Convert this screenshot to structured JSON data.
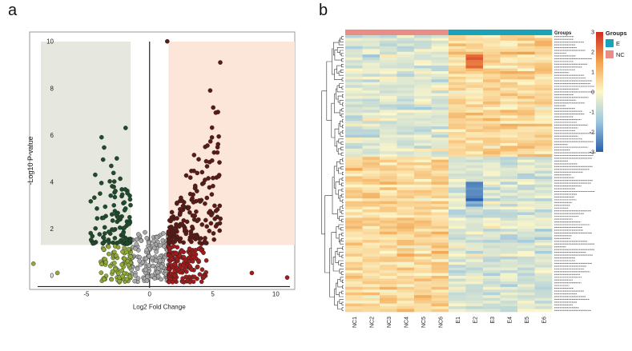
{
  "panel_labels": {
    "a": "a",
    "b": "b"
  },
  "chart_data": [
    {
      "type": "scatter",
      "panel": "a",
      "title": "",
      "xlabel": "Log2 Fold Change",
      "ylabel": "-Log10 P-value",
      "xlim": [
        -9.5,
        11.5
      ],
      "ylim": [
        -0.6,
        10.4
      ],
      "xticks": [
        -5,
        0,
        5,
        10
      ],
      "xtick_labels": [
        "-5",
        "0",
        "5",
        "10"
      ],
      "yticks": [
        0,
        2,
        4,
        6,
        8,
        10
      ],
      "ytick_labels": [
        "0",
        "2",
        "4",
        "6",
        "8",
        "10"
      ],
      "thresholds": {
        "x_left": -1.5,
        "x_right": 1.5,
        "y": 1.3
      },
      "colors": {
        "down_sig": "#1f4d2c",
        "down_fc": "#8faa3a",
        "ns": "#a9a9a9",
        "up_fc": "#a01c1c",
        "up_sig": "#5c1a16",
        "left_region": "#e6e8df",
        "right_region": "#fbe6d9"
      },
      "seed": 7,
      "point_counts": {
        "down_sig": 110,
        "down_fc": 90,
        "ns": 150,
        "up_fc": 150,
        "up_sig": 180
      },
      "highlight_points": [
        {
          "x": -9.2,
          "y": 0.5,
          "group": "down_fc"
        },
        {
          "x": -7.3,
          "y": 0.2,
          "group": "down_fc"
        },
        {
          "x": -3.8,
          "y": 5.9,
          "group": "down_sig"
        },
        {
          "x": -2.6,
          "y": 5.0,
          "group": "down_sig"
        },
        {
          "x": -1.9,
          "y": 6.3,
          "group": "down_sig"
        },
        {
          "x": 1.4,
          "y": 10.0,
          "group": "up_sig"
        },
        {
          "x": 5.6,
          "y": 9.1,
          "group": "up_sig"
        },
        {
          "x": 4.8,
          "y": 7.9,
          "group": "up_sig"
        },
        {
          "x": 10.9,
          "y": 0.1,
          "group": "up_fc"
        },
        {
          "x": 8.1,
          "y": 0.2,
          "group": "up_fc"
        }
      ]
    },
    {
      "type": "heatmap",
      "panel": "b",
      "columns": [
        "NC1",
        "NC2",
        "NC3",
        "NC4",
        "NC5",
        "NC6",
        "E1",
        "E2",
        "E3",
        "E4",
        "E5",
        "E6"
      ],
      "column_groups": [
        "NC",
        "NC",
        "NC",
        "NC",
        "NC",
        "NC",
        "E",
        "E",
        "E",
        "E",
        "E",
        "E"
      ],
      "annotation_title": "Groups",
      "legend": {
        "title": "Groups",
        "items": [
          {
            "label": "E",
            "color": "#19a3b8"
          },
          {
            "label": "NC",
            "color": "#ea8d84"
          }
        ]
      },
      "colorbar": {
        "ticks": [
          3,
          2,
          1,
          0,
          -1,
          -2,
          -3
        ],
        "colors": [
          "#2a5fa8",
          "#9cc6df",
          "#fdf7c9",
          "#f3a24b",
          "#cf2d23"
        ]
      },
      "value_range": [
        -3,
        3
      ],
      "n_rows": 100,
      "n_top_cluster_rows": 44,
      "seed": 21,
      "row_label_note": "row labels are illegible at this resolution and rendered as faint lines"
    }
  ]
}
